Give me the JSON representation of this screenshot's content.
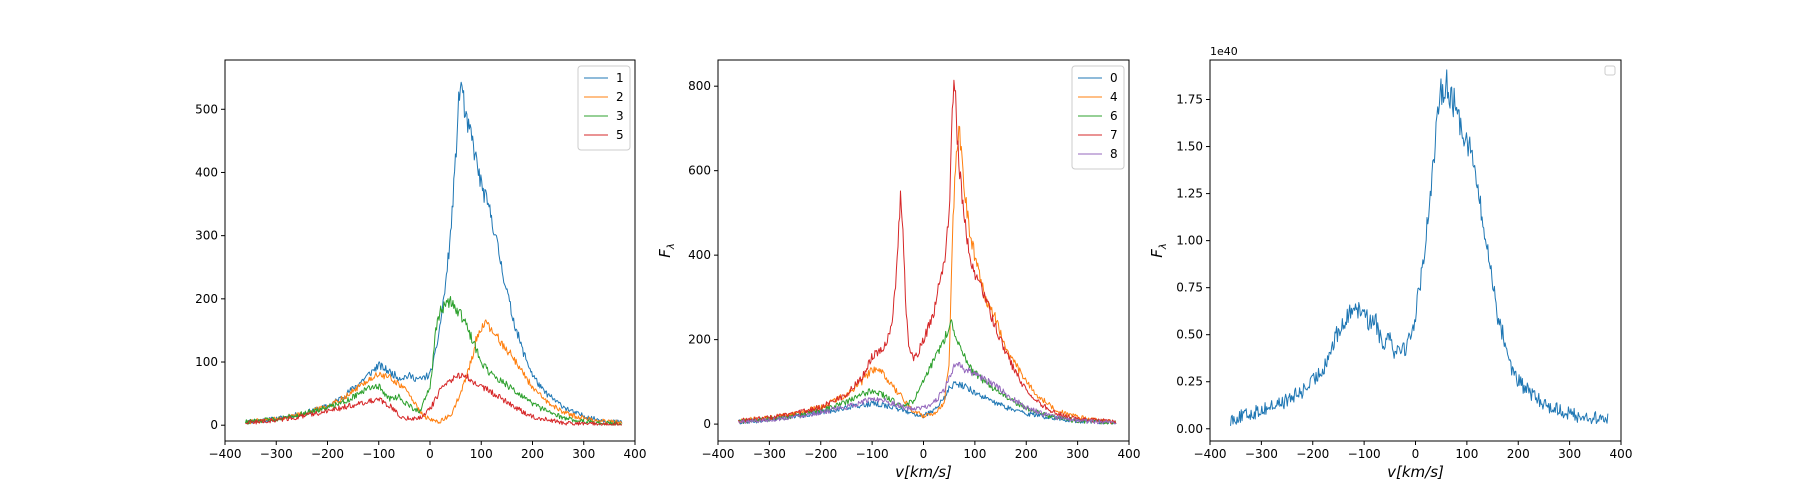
{
  "chart_data": [
    {
      "type": "line",
      "title": "",
      "xlabel": "",
      "ylabel": "",
      "xlim": [
        -400,
        400
      ],
      "ylim": [
        -25,
        578
      ],
      "xticks": [
        -400,
        -300,
        -200,
        -100,
        0,
        100,
        200,
        300,
        400
      ],
      "xtick_labels": [
        "−400",
        "−300",
        "−200",
        "−100",
        "0",
        "100",
        "200",
        "300",
        "400"
      ],
      "yticks": [
        0,
        100,
        200,
        300,
        400,
        500
      ],
      "ytick_labels": [
        "0",
        "100",
        "200",
        "300",
        "400",
        "500"
      ],
      "grid": false,
      "legend": "upper right",
      "series": [
        {
          "name": "1",
          "color": "#1f77b4",
          "x": [
            -360,
            -300,
            -250,
            -200,
            -170,
            -140,
            -120,
            -100,
            -80,
            -60,
            -40,
            -20,
            0,
            10,
            20,
            30,
            40,
            50,
            55,
            60,
            65,
            70,
            80,
            90,
            100,
            120,
            140,
            160,
            180,
            200,
            220,
            250,
            280,
            320,
            375
          ],
          "y": [
            5,
            10,
            18,
            30,
            45,
            65,
            80,
            95,
            85,
            75,
            78,
            72,
            80,
            110,
            160,
            220,
            300,
            420,
            500,
            545,
            520,
            480,
            460,
            420,
            380,
            330,
            250,
            175,
            120,
            80,
            55,
            35,
            20,
            10,
            4
          ]
        },
        {
          "name": "2",
          "color": "#ff7f0e",
          "x": [
            -360,
            -300,
            -250,
            -200,
            -160,
            -120,
            -100,
            -80,
            -60,
            -40,
            -20,
            0,
            20,
            40,
            60,
            80,
            90,
            100,
            110,
            120,
            140,
            160,
            180,
            200,
            220,
            250,
            280,
            320,
            375
          ],
          "y": [
            5,
            10,
            18,
            30,
            48,
            72,
            80,
            76,
            65,
            50,
            20,
            8,
            6,
            15,
            50,
            100,
            135,
            155,
            160,
            150,
            130,
            110,
            85,
            60,
            42,
            25,
            15,
            8,
            4
          ]
        },
        {
          "name": "3",
          "color": "#2ca02c",
          "x": [
            -360,
            -300,
            -250,
            -200,
            -160,
            -140,
            -120,
            -100,
            -90,
            -80,
            -60,
            -40,
            -20,
            0,
            5,
            10,
            20,
            30,
            40,
            50,
            60,
            70,
            80,
            90,
            100,
            120,
            140,
            160,
            180,
            200,
            220,
            250,
            280,
            320,
            375
          ],
          "y": [
            5,
            10,
            18,
            28,
            40,
            50,
            58,
            62,
            50,
            42,
            45,
            30,
            20,
            60,
            90,
            150,
            180,
            190,
            195,
            185,
            175,
            160,
            140,
            120,
            100,
            80,
            70,
            58,
            45,
            34,
            25,
            15,
            8,
            4,
            2
          ]
        },
        {
          "name": "5",
          "color": "#d62728",
          "x": [
            -360,
            -300,
            -250,
            -200,
            -160,
            -120,
            -100,
            -80,
            -60,
            -40,
            -20,
            0,
            20,
            40,
            60,
            70,
            80,
            100,
            120,
            140,
            160,
            180,
            200,
            230,
            260,
            300,
            375
          ],
          "y": [
            4,
            8,
            14,
            22,
            30,
            38,
            40,
            32,
            15,
            10,
            12,
            25,
            55,
            70,
            80,
            78,
            72,
            62,
            52,
            42,
            32,
            22,
            14,
            8,
            4,
            2,
            1
          ]
        }
      ]
    },
    {
      "type": "line",
      "title": "",
      "xlabel": "v[km/s]",
      "ylabel": "F_λ",
      "xlim": [
        -400,
        400
      ],
      "ylim": [
        -40,
        862
      ],
      "xticks": [
        -400,
        -300,
        -200,
        -100,
        0,
        100,
        200,
        300,
        400
      ],
      "xtick_labels": [
        "−400",
        "−300",
        "−200",
        "−100",
        "0",
        "100",
        "200",
        "300",
        "400"
      ],
      "yticks": [
        0,
        200,
        400,
        600,
        800
      ],
      "ytick_labels": [
        "0",
        "200",
        "400",
        "600",
        "800"
      ],
      "grid": false,
      "legend": "upper right",
      "series": [
        {
          "name": "0",
          "color": "#1f77b4",
          "x": [
            -360,
            -300,
            -250,
            -200,
            -150,
            -120,
            -100,
            -80,
            -60,
            -40,
            -20,
            0,
            20,
            40,
            50,
            60,
            80,
            100,
            120,
            140,
            160,
            200,
            250,
            300,
            375
          ],
          "y": [
            5,
            10,
            18,
            28,
            38,
            45,
            48,
            46,
            40,
            32,
            25,
            20,
            30,
            60,
            85,
            95,
            90,
            75,
            62,
            50,
            40,
            25,
            15,
            8,
            3
          ]
        },
        {
          "name": "4",
          "color": "#ff7f0e",
          "x": [
            -360,
            -300,
            -250,
            -200,
            -150,
            -120,
            -100,
            -80,
            -60,
            -40,
            -20,
            0,
            20,
            40,
            50,
            55,
            60,
            65,
            70,
            80,
            90,
            100,
            110,
            120,
            140,
            160,
            180,
            200,
            220,
            250,
            280,
            320,
            375
          ],
          "y": [
            8,
            15,
            25,
            40,
            70,
            100,
            130,
            120,
            90,
            60,
            30,
            20,
            25,
            50,
            150,
            400,
            550,
            650,
            700,
            550,
            450,
            400,
            350,
            300,
            250,
            180,
            140,
            100,
            70,
            40,
            22,
            12,
            5
          ]
        },
        {
          "name": "6",
          "color": "#2ca02c",
          "x": [
            -360,
            -300,
            -250,
            -200,
            -150,
            -120,
            -100,
            -80,
            -60,
            -40,
            -20,
            0,
            20,
            40,
            50,
            55,
            60,
            70,
            80,
            90,
            100,
            120,
            140,
            160,
            180,
            200,
            230,
            260,
            300,
            375
          ],
          "y": [
            6,
            12,
            20,
            32,
            52,
            70,
            80,
            70,
            55,
            40,
            55,
            100,
            150,
            200,
            230,
            240,
            220,
            190,
            160,
            135,
            120,
            100,
            82,
            65,
            50,
            38,
            25,
            15,
            8,
            3
          ]
        },
        {
          "name": "7",
          "color": "#d62728",
          "x": [
            -360,
            -300,
            -250,
            -200,
            -150,
            -120,
            -100,
            -80,
            -70,
            -60,
            -50,
            -45,
            -40,
            -35,
            -30,
            -20,
            -10,
            0,
            10,
            20,
            30,
            40,
            50,
            55,
            60,
            65,
            70,
            80,
            90,
            100,
            120,
            140,
            160,
            180,
            200,
            230,
            260,
            300,
            375
          ],
          "y": [
            8,
            15,
            25,
            40,
            70,
            110,
            160,
            180,
            200,
            250,
            400,
            550,
            450,
            300,
            200,
            150,
            170,
            200,
            230,
            260,
            330,
            380,
            500,
            700,
            820,
            700,
            600,
            480,
            400,
            360,
            300,
            230,
            170,
            120,
            80,
            45,
            25,
            12,
            5
          ]
        },
        {
          "name": "8",
          "color": "#9467bd",
          "x": [
            -360,
            -300,
            -250,
            -200,
            -150,
            -120,
            -100,
            -80,
            -60,
            -40,
            -20,
            0,
            20,
            40,
            50,
            60,
            70,
            80,
            100,
            120,
            140,
            160,
            180,
            200,
            230,
            260,
            300,
            375
          ],
          "y": [
            5,
            10,
            18,
            28,
            40,
            52,
            60,
            58,
            50,
            40,
            35,
            38,
            50,
            80,
            110,
            135,
            138,
            130,
            120,
            105,
            90,
            72,
            55,
            40,
            25,
            15,
            8,
            3
          ]
        }
      ]
    },
    {
      "type": "line",
      "title": "",
      "xlabel": "v[km/s]",
      "ylabel": "F_λ",
      "offset_text": "1e40",
      "xlim": [
        -400,
        400
      ],
      "ylim": [
        -0.065,
        1.96
      ],
      "xticks": [
        -400,
        -300,
        -200,
        -100,
        0,
        100,
        200,
        300,
        400
      ],
      "xtick_labels": [
        "−400",
        "−300",
        "−200",
        "−100",
        "0",
        "100",
        "200",
        "300",
        "400"
      ],
      "yticks": [
        0,
        0.25,
        0.5,
        0.75,
        1.0,
        1.25,
        1.5,
        1.75
      ],
      "ytick_labels": [
        "0.00",
        "0.25",
        "0.50",
        "0.75",
        "1.00",
        "1.25",
        "1.50",
        "1.75"
      ],
      "grid": false,
      "legend": "upper right (empty)",
      "series": [
        {
          "name": "",
          "color": "#1f77b4",
          "x": [
            -360,
            -320,
            -300,
            -280,
            -250,
            -220,
            -200,
            -180,
            -160,
            -150,
            -140,
            -130,
            -120,
            -110,
            -100,
            -90,
            -80,
            -70,
            -60,
            -50,
            -40,
            -30,
            -20,
            -10,
            0,
            10,
            20,
            30,
            40,
            50,
            60,
            70,
            80,
            90,
            100,
            110,
            120,
            130,
            140,
            150,
            160,
            170,
            180,
            190,
            200,
            220,
            240,
            260,
            280,
            300,
            330,
            375
          ],
          "y": [
            0.05,
            0.08,
            0.1,
            0.12,
            0.15,
            0.2,
            0.25,
            0.32,
            0.45,
            0.52,
            0.55,
            0.6,
            0.68,
            0.62,
            0.65,
            0.55,
            0.6,
            0.5,
            0.45,
            0.52,
            0.4,
            0.45,
            0.42,
            0.5,
            0.6,
            0.8,
            1.0,
            1.3,
            1.55,
            1.8,
            1.85,
            1.75,
            1.7,
            1.6,
            1.55,
            1.45,
            1.3,
            1.1,
            0.95,
            0.8,
            0.6,
            0.5,
            0.4,
            0.3,
            0.25,
            0.2,
            0.15,
            0.12,
            0.1,
            0.08,
            0.06,
            0.05
          ]
        }
      ]
    }
  ]
}
